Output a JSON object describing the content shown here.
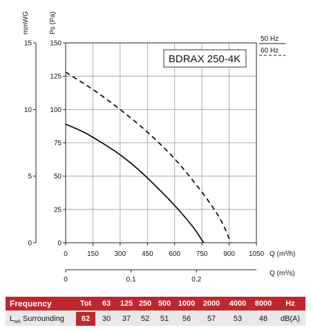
{
  "chart_data": {
    "type": "line",
    "model_label": "BDRAX 250-4K",
    "left_axis_title": "mmWG",
    "y_axis_title": "Ps (Pa)",
    "x_axis_title": "Q (m³/h)",
    "x2_axis_title": "Q (m³/s)",
    "ylim": [
      0,
      150
    ],
    "xlim": [
      0,
      1050
    ],
    "y_ticks": [
      "0",
      "25",
      "50",
      "75",
      "100",
      "125",
      "150"
    ],
    "y_tick_values": [
      0,
      25,
      50,
      75,
      100,
      125,
      150
    ],
    "mmwg_ticks": [
      "0",
      "5",
      "10",
      "15"
    ],
    "mmwg_tick_values": [
      0,
      5,
      10,
      15
    ],
    "x_ticks": [
      "0",
      "150",
      "300",
      "450",
      "600",
      "750",
      "900",
      "1050"
    ],
    "x_tick_values": [
      0,
      150,
      300,
      450,
      600,
      750,
      900,
      1050
    ],
    "x2_ticks": [
      "0",
      "0.1",
      "0.2"
    ],
    "x2_tick_values": [
      0,
      0.1,
      0.2
    ],
    "grid": true,
    "series": [
      {
        "name": "50 Hz",
        "style": "solid",
        "x": [
          0,
          100,
          200,
          300,
          400,
          500,
          600,
          700,
          760
        ],
        "y": [
          89,
          83,
          75,
          66,
          55,
          42,
          28,
          12,
          0
        ]
      },
      {
        "name": "60 Hz",
        "style": "dashed",
        "x": [
          0,
          150,
          300,
          450,
          600,
          750,
          850,
          910
        ],
        "y": [
          128,
          115,
          100,
          83,
          63,
          38,
          18,
          0
        ]
      }
    ]
  },
  "table": {
    "header_label": "Frequency",
    "row_label_main": "L",
    "row_label_sub": "wA",
    "row_label_rest": " Surrounding",
    "columns": [
      "Tot",
      "63",
      "125",
      "250",
      "500",
      "1000",
      "2000",
      "4000",
      "8000",
      "Hz"
    ],
    "values": [
      "62",
      "30",
      "37",
      "52",
      "51",
      "56",
      "57",
      "53",
      "48",
      "dB(A)"
    ],
    "highlight_color": "#c0272d"
  }
}
